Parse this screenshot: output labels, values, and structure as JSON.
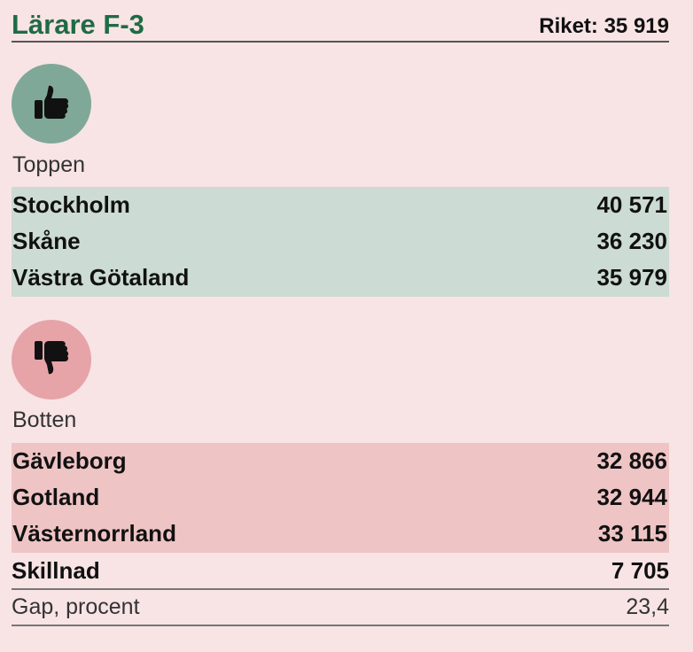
{
  "header": {
    "title": "Lärare F-3",
    "riket": "Riket: 35 919"
  },
  "colors": {
    "title_green": "#1f6b45",
    "top_circle": "#7fa898",
    "bottom_circle": "#e6a4a8",
    "top_bg": "#ccdbd3",
    "bottom_bg": "#efc4c5",
    "page_bg": "#f8e4e5"
  },
  "top": {
    "icon": "thumbs-up-icon",
    "label": "Toppen",
    "rows": [
      {
        "name": "Stockholm",
        "value": "40 571"
      },
      {
        "name": "Skåne",
        "value": "36 230"
      },
      {
        "name": "Västra Götaland",
        "value": "35 979"
      }
    ]
  },
  "bottom": {
    "icon": "thumbs-down-icon",
    "label": "Botten",
    "rows": [
      {
        "name": "Gävleborg",
        "value": "32 866"
      },
      {
        "name": "Gotland",
        "value": "32 944"
      },
      {
        "name": "Västernorrland",
        "value": "33 115"
      }
    ]
  },
  "summary": {
    "skillnad_label": "Skillnad",
    "skillnad_value": "7 705",
    "gap_label": "Gap, procent",
    "gap_value": "23,4"
  }
}
